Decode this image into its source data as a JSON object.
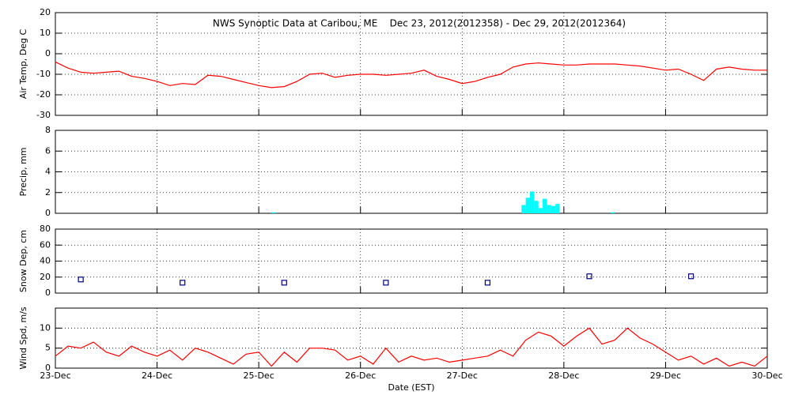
{
  "chart_data": [
    {
      "type": "line",
      "title": "NWS Synoptic Data at Caribou, ME    Dec 23, 2012(2012358) - Dec 29, 2012(2012364)",
      "ylabel": "Air Temp, Deg C",
      "color": "#ff0000",
      "grid": true,
      "x": [
        0,
        3,
        6,
        9,
        12,
        15,
        18,
        21,
        24,
        27,
        30,
        33,
        36,
        39,
        42,
        45,
        48,
        51,
        54,
        57,
        60,
        63,
        66,
        69,
        72,
        75,
        78,
        81,
        84,
        87,
        90,
        93,
        96,
        99,
        102,
        105,
        108,
        111,
        114,
        117,
        120,
        123,
        126,
        129,
        132,
        135,
        138,
        141,
        144,
        147,
        150,
        153,
        156,
        159,
        162,
        165,
        168
      ],
      "values": [
        -4,
        -7,
        -9,
        -9.5,
        -9,
        -8.5,
        -11,
        -12,
        -13.5,
        -15.5,
        -14.5,
        -15,
        -10.5,
        -11,
        -12.5,
        -14,
        -15.5,
        -16.5,
        -16,
        -13.5,
        -10,
        -9.5,
        -11.5,
        -10.5,
        -10,
        -10,
        -10.5,
        -10,
        -9.5,
        -8,
        -11,
        -12.5,
        -14.5,
        -13.5,
        -11.5,
        -10,
        -6.5,
        -5,
        -4.5,
        -5,
        -5.5,
        -5.5,
        -5,
        -5,
        -5,
        -5.5,
        -6,
        -7,
        -8,
        -7.5,
        -10,
        -13,
        -7.5,
        -6.5,
        -7.5,
        -8,
        -8
      ],
      "xlim": [
        0,
        168
      ],
      "xticks": [
        0,
        24,
        48,
        72,
        96,
        120,
        144,
        168
      ],
      "ylim": [
        -30,
        20
      ],
      "yticks": [
        -30,
        -20,
        -10,
        0,
        10,
        20
      ]
    },
    {
      "type": "bar",
      "ylabel": "Precip, mm",
      "color": "#00ffff",
      "grid": true,
      "x": [
        51,
        110,
        111,
        112,
        113,
        114,
        115,
        116,
        117,
        118,
        131
      ],
      "values": [
        0.1,
        0.8,
        1.5,
        2.1,
        1.2,
        0.5,
        1.4,
        0.8,
        0.7,
        0.9,
        0.1
      ],
      "xlim": [
        0,
        168
      ],
      "xticks": [
        0,
        24,
        48,
        72,
        96,
        120,
        144,
        168
      ],
      "ylim": [
        0,
        8
      ],
      "yticks": [
        0,
        2,
        4,
        6,
        8
      ]
    },
    {
      "type": "scatter",
      "ylabel": "Snow Dep, cm",
      "color": "#000080",
      "grid": true,
      "x": [
        6,
        30,
        54,
        78,
        102,
        126,
        150
      ],
      "values": [
        17,
        13,
        13,
        13,
        13,
        21,
        21
      ],
      "xlim": [
        0,
        168
      ],
      "xticks": [
        0,
        24,
        48,
        72,
        96,
        120,
        144,
        168
      ],
      "ylim": [
        0,
        80
      ],
      "yticks": [
        0,
        20,
        40,
        60,
        80
      ]
    },
    {
      "type": "line",
      "ylabel": "Wind Spd, m/s",
      "xlabel": "Date (EST)",
      "color": "#ff0000",
      "grid": true,
      "x": [
        0,
        3,
        6,
        9,
        12,
        15,
        18,
        21,
        24,
        27,
        30,
        33,
        36,
        39,
        42,
        45,
        48,
        51,
        54,
        57,
        60,
        63,
        66,
        69,
        72,
        75,
        78,
        81,
        84,
        87,
        90,
        93,
        96,
        99,
        102,
        105,
        108,
        111,
        114,
        117,
        120,
        123,
        126,
        129,
        132,
        135,
        138,
        141,
        144,
        147,
        150,
        153,
        156,
        159,
        162,
        165,
        168
      ],
      "values": [
        3,
        5.5,
        5,
        6.5,
        4,
        3,
        5.5,
        4,
        3,
        4.5,
        2,
        5,
        4,
        2.5,
        1,
        3.5,
        4,
        0.5,
        4,
        1.5,
        5,
        5,
        4.5,
        2,
        3,
        1,
        5,
        1.5,
        3,
        2,
        2.5,
        1.5,
        2,
        2.5,
        3,
        4.5,
        3,
        7,
        9,
        8,
        5.5,
        8,
        10,
        6,
        7,
        10,
        7.5,
        6,
        4,
        2,
        3,
        1,
        2.5,
        0.5,
        1.5,
        0.5,
        3
      ],
      "xlim": [
        0,
        168
      ],
      "xticks": [
        {
          "value": 0,
          "label": "23-Dec"
        },
        {
          "value": 24,
          "label": "24-Dec"
        },
        {
          "value": 48,
          "label": "25-Dec"
        },
        {
          "value": 72,
          "label": "26-Dec"
        },
        {
          "value": 96,
          "label": "27-Dec"
        },
        {
          "value": 120,
          "label": "28-Dec"
        },
        {
          "value": 144,
          "label": "29-Dec"
        },
        {
          "value": 168,
          "label": "30-Dec"
        }
      ],
      "ylim": [
        0,
        15
      ],
      "yticks": [
        0,
        5,
        10
      ]
    }
  ]
}
